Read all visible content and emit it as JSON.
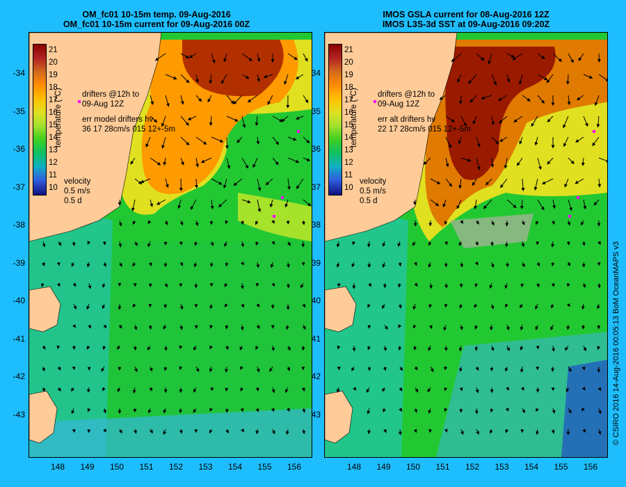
{
  "left_panel": {
    "title_line1": "OM_fc01 10-15m temp. 09-Aug-2016",
    "title_line2": "OM_fc01 10-15m current for 09-Aug-2016 00Z",
    "drifters_line1": "drifters @12h to",
    "drifters_line2": "09-Aug 12Z",
    "err_line1": "err model drifters hv",
    "err_line2": "36 17 28cm/s 015 12+-5m",
    "velocity_label": "velocity",
    "velocity_scale": "0.5 m/s",
    "velocity_time": "0.5 d"
  },
  "right_panel": {
    "title_line1": "IMOS GSLA current for 08-Aug-2016 12Z",
    "title_line2": "IMOS L3S-3d SST at 09-Aug-2016 09:20Z",
    "drifters_line1": "drifters @12h to",
    "drifters_line2": "09-Aug 12Z",
    "err_line1": "err alt drifters hv",
    "err_line2": "22 17 28cm/s 015 12+-5m",
    "velocity_label": "velocity",
    "velocity_scale": "0.5 m/s",
    "velocity_time": "0.5 d"
  },
  "colorbar": {
    "label": "temperature (°C)",
    "ticks": [
      "21",
      "20",
      "19",
      "18",
      "17",
      "16",
      "15",
      "14",
      "13",
      "12",
      "11",
      "10"
    ]
  },
  "axes": {
    "lat_labels": [
      "-34",
      "-35",
      "-36",
      "-37",
      "-38",
      "-39",
      "-40",
      "-41",
      "-42",
      "-43"
    ],
    "lon_labels": [
      "148",
      "149",
      "150",
      "151",
      "152",
      "153",
      "154",
      "155",
      "156"
    ]
  },
  "credit": "© CSIRO 2016  14-Aug-2016 00:05:13 BoM OceanMAPS v3",
  "colors": {
    "background": "#1ebefe",
    "land": "#ffcc99",
    "drifter": "#ff00ff"
  }
}
